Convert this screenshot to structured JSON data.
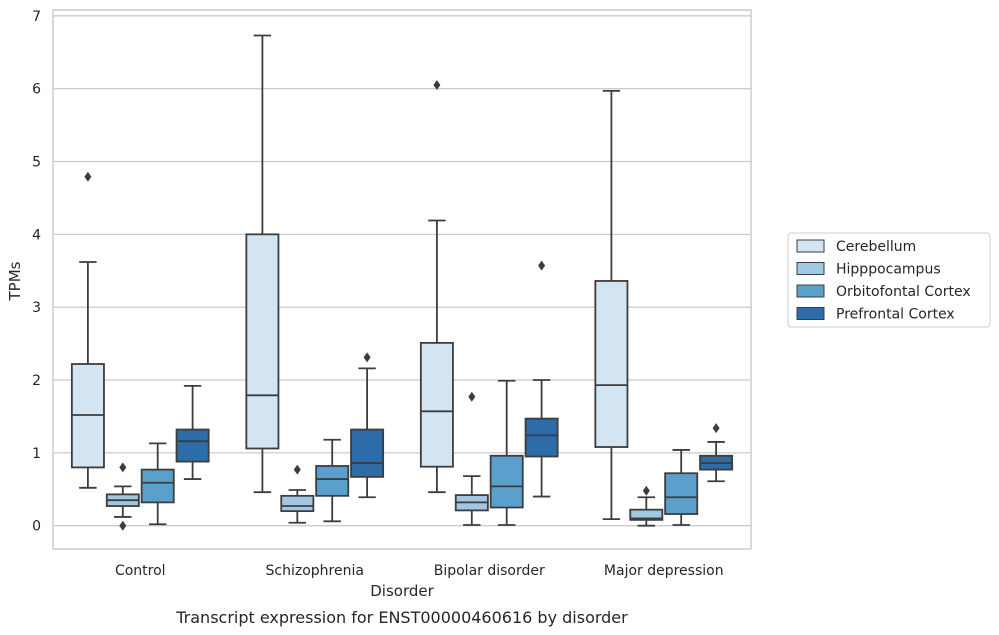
{
  "chart_data": {
    "type": "box",
    "xlabel": "Disorder",
    "ylabel": "TPMs",
    "caption": "Transcript expression for ENST00000460616 by disorder",
    "ylim": [
      -0.32,
      7.08
    ],
    "yticks": [
      0,
      1,
      2,
      3,
      4,
      5,
      6,
      7
    ],
    "grid": "horizontal",
    "legend_position": "right",
    "categories": [
      "Control",
      "Schizophrenia",
      "Bipolar disorder",
      "Major depression"
    ],
    "series": [
      {
        "name": "Cerebellum",
        "color": "#d3e4f3",
        "boxes": [
          {
            "whisker_low": 0.52,
            "q1": 0.8,
            "median": 1.52,
            "q3": 2.22,
            "whisker_high": 3.62,
            "outliers": [
              4.79
            ]
          },
          {
            "whisker_low": 0.46,
            "q1": 1.06,
            "median": 1.79,
            "q3": 4.0,
            "whisker_high": 6.73,
            "outliers": []
          },
          {
            "whisker_low": 0.46,
            "q1": 0.81,
            "median": 1.57,
            "q3": 2.51,
            "whisker_high": 4.19,
            "outliers": [
              6.05
            ]
          },
          {
            "whisker_low": 0.09,
            "q1": 1.08,
            "median": 1.93,
            "q3": 3.36,
            "whisker_high": 5.97,
            "outliers": []
          }
        ]
      },
      {
        "name": "Hipppocampus",
        "color": "#a0c8e2",
        "boxes": [
          {
            "whisker_low": 0.12,
            "q1": 0.27,
            "median": 0.35,
            "q3": 0.43,
            "whisker_high": 0.54,
            "outliers": [
              0.8,
              0.0
            ]
          },
          {
            "whisker_low": 0.04,
            "q1": 0.2,
            "median": 0.27,
            "q3": 0.41,
            "whisker_high": 0.49,
            "outliers": [
              0.77
            ]
          },
          {
            "whisker_low": 0.01,
            "q1": 0.21,
            "median": 0.32,
            "q3": 0.42,
            "whisker_high": 0.68,
            "outliers": [
              1.77
            ]
          },
          {
            "whisker_low": 0.0,
            "q1": 0.08,
            "median": 0.1,
            "q3": 0.22,
            "whisker_high": 0.39,
            "outliers": [
              0.48
            ]
          }
        ]
      },
      {
        "name": "Orbitofontal Cortex",
        "color": "#5aa0cd",
        "boxes": [
          {
            "whisker_low": 0.02,
            "q1": 0.32,
            "median": 0.59,
            "q3": 0.77,
            "whisker_high": 1.13,
            "outliers": []
          },
          {
            "whisker_low": 0.06,
            "q1": 0.41,
            "median": 0.64,
            "q3": 0.82,
            "whisker_high": 1.18,
            "outliers": []
          },
          {
            "whisker_low": 0.01,
            "q1": 0.25,
            "median": 0.54,
            "q3": 0.96,
            "whisker_high": 1.99,
            "outliers": []
          },
          {
            "whisker_low": 0.01,
            "q1": 0.16,
            "median": 0.39,
            "q3": 0.72,
            "whisker_high": 1.04,
            "outliers": []
          }
        ]
      },
      {
        "name": "Prefrontal Cortex",
        "color": "#2b6ca9",
        "boxes": [
          {
            "whisker_low": 0.64,
            "q1": 0.88,
            "median": 1.16,
            "q3": 1.32,
            "whisker_high": 1.92,
            "outliers": []
          },
          {
            "whisker_low": 0.39,
            "q1": 0.67,
            "median": 0.86,
            "q3": 1.32,
            "whisker_high": 2.16,
            "outliers": [
              2.31
            ]
          },
          {
            "whisker_low": 0.4,
            "q1": 0.95,
            "median": 1.24,
            "q3": 1.47,
            "whisker_high": 2.0,
            "outliers": [
              3.57
            ]
          },
          {
            "whisker_low": 0.61,
            "q1": 0.77,
            "median": 0.86,
            "q3": 0.96,
            "whisker_high": 1.15,
            "outliers": [
              1.34
            ]
          }
        ]
      }
    ]
  }
}
